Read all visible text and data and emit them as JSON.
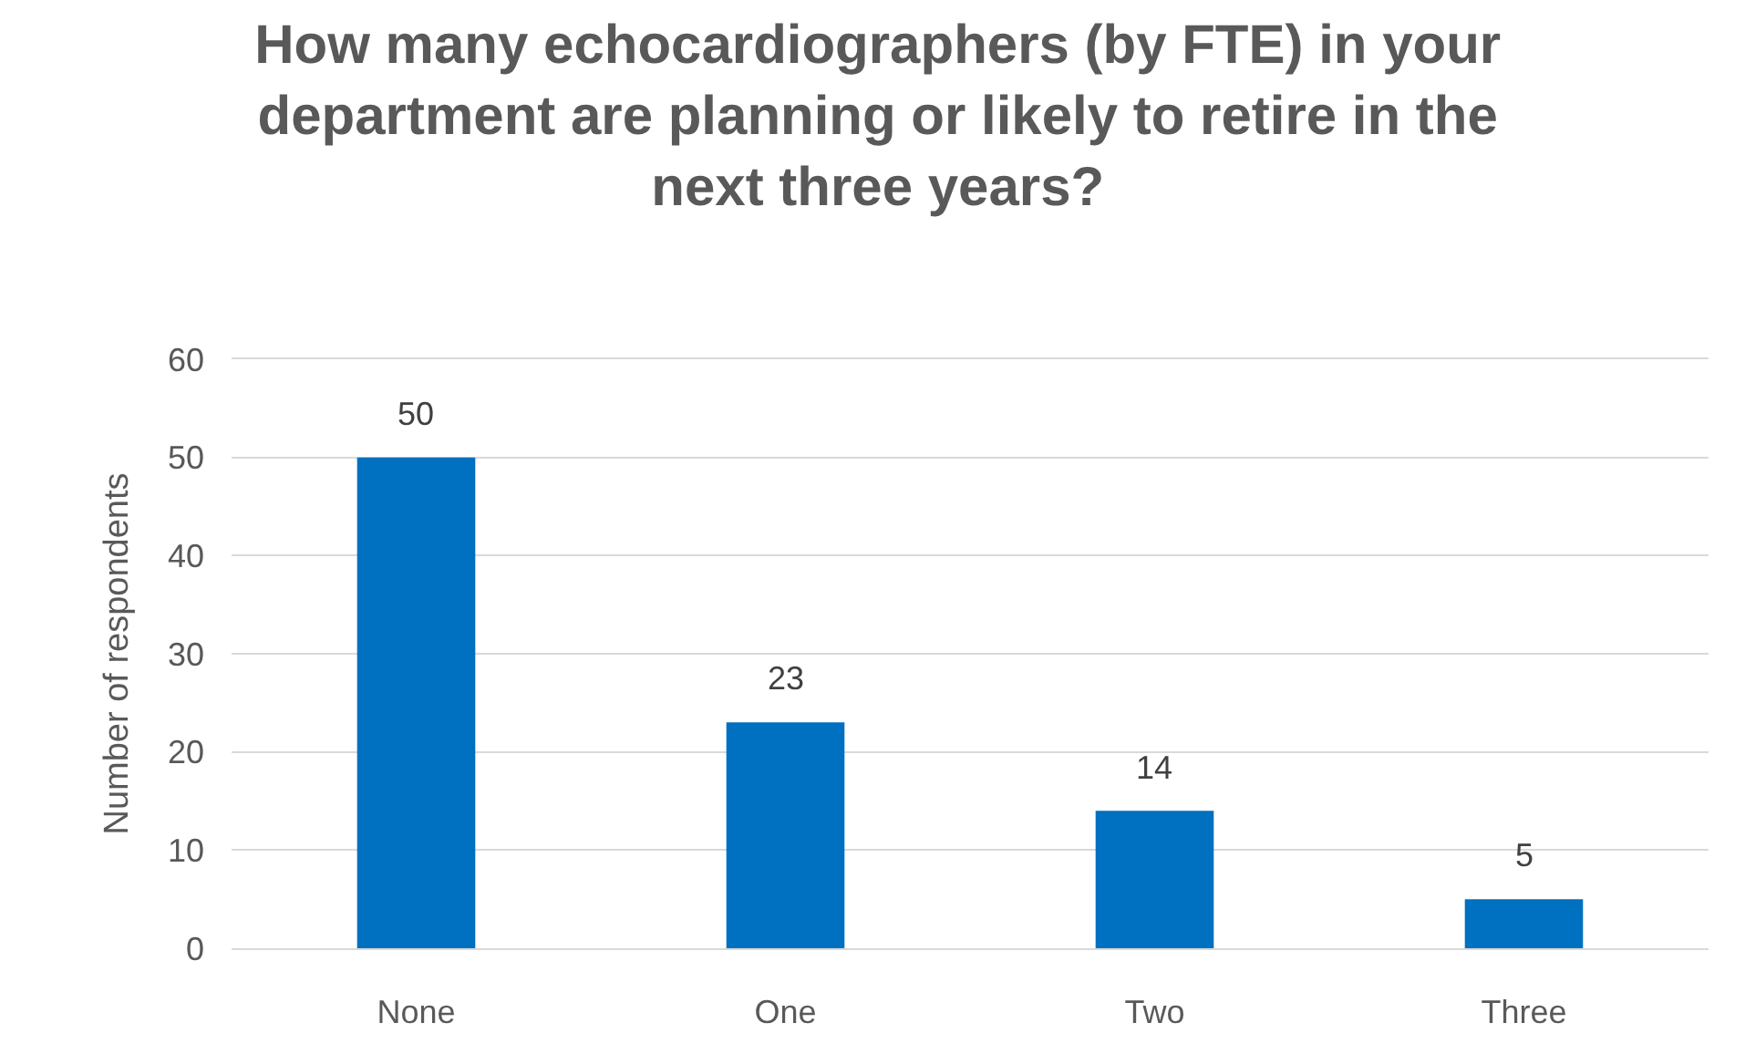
{
  "chart_data": {
    "type": "bar",
    "title": "How many echocardiographers (by FTE) in your department are planning or likely to retire in the next three years?",
    "ylabel": "Number of respondents",
    "categories": [
      "None",
      "One",
      "Two",
      "Three"
    ],
    "values": [
      50,
      23,
      14,
      5
    ],
    "color": "#0070c0",
    "ylim": [
      0,
      60
    ],
    "yticks": [
      0,
      10,
      20,
      30,
      40,
      50,
      60
    ],
    "grid": "y",
    "data_labels": true,
    "legend": false
  }
}
